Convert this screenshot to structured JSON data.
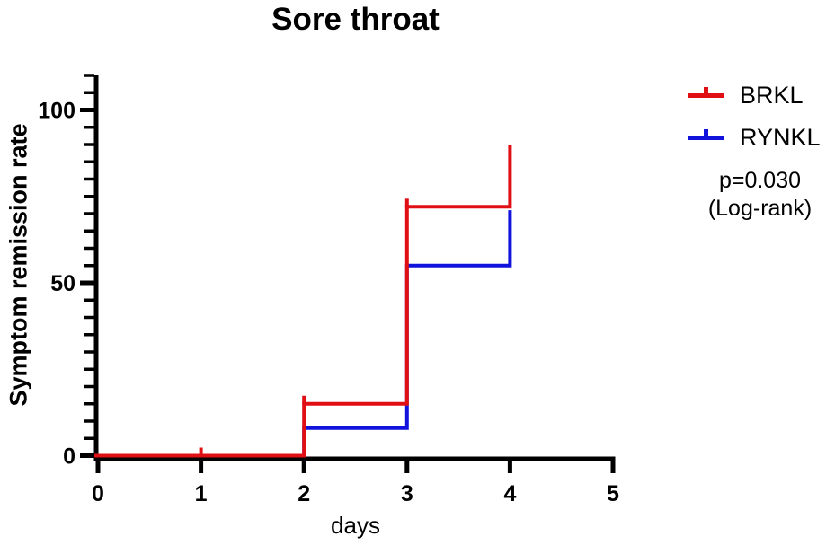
{
  "title": "Sore throat",
  "x_axis": {
    "label": "days",
    "min": 0,
    "max": 5,
    "ticks": [
      0,
      1,
      2,
      3,
      4,
      5
    ]
  },
  "y_axis": {
    "label": "Symptom remission rate",
    "min": 0,
    "max": 110,
    "major_ticks": [
      0,
      50,
      100
    ],
    "minor_tick_step": 5
  },
  "legend": {
    "items": [
      {
        "label": "BRKL",
        "color": "#e00f14"
      },
      {
        "label": "RYNKL",
        "color": "#1212dd"
      }
    ],
    "pvalue": "p=0.030",
    "pvalue_method": "(Log-rank)"
  },
  "chart_data": {
    "type": "line",
    "subtype": "kaplan-meier-step",
    "title": "Sore throat",
    "xlabel": "days",
    "ylabel": "Symptom remission rate",
    "xlim": [
      0,
      5
    ],
    "ylim": [
      0,
      110
    ],
    "x_ticks": [
      0,
      1,
      2,
      3,
      4,
      5
    ],
    "y_major_ticks": [
      0,
      50,
      100
    ],
    "y_minor_tick_step": 5,
    "grid": false,
    "legend_position": "right-outside",
    "annotations": [
      "p=0.030",
      "(Log-rank)"
    ],
    "series": [
      {
        "name": "BRKL",
        "color": "#e00f14",
        "step_points": [
          {
            "x": 0,
            "y": 0
          },
          {
            "x": 2,
            "y": 15
          },
          {
            "x": 3,
            "y": 72
          },
          {
            "x": 4,
            "y": 90
          }
        ],
        "censor_ticks": [
          {
            "x": 1,
            "y": 0
          },
          {
            "x": 2,
            "y": 15
          },
          {
            "x": 3,
            "y": 72
          }
        ]
      },
      {
        "name": "RYNKL",
        "color": "#1212dd",
        "step_points": [
          {
            "x": 0,
            "y": 0
          },
          {
            "x": 2,
            "y": 8
          },
          {
            "x": 3,
            "y": 55
          },
          {
            "x": 4,
            "y": 71
          }
        ],
        "censor_ticks": []
      }
    ]
  }
}
